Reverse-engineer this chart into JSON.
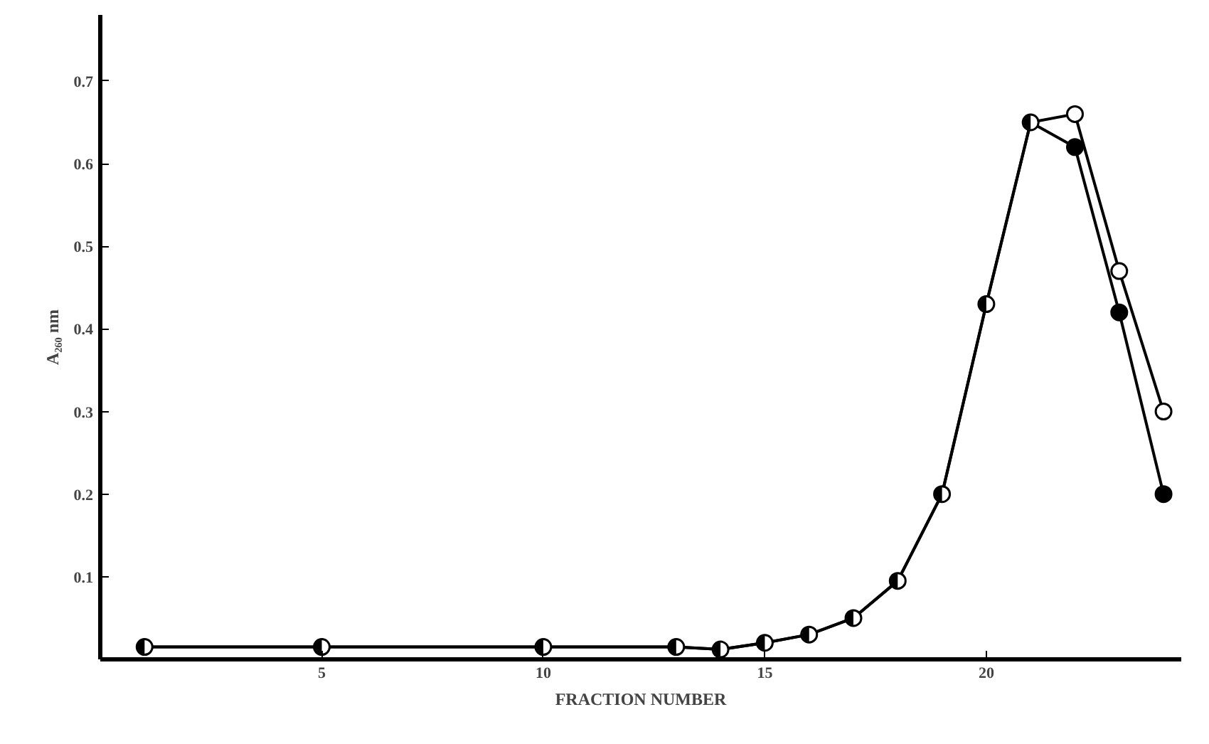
{
  "chart_data": {
    "type": "line",
    "xlabel": "FRACTION NUMBER",
    "ylabel": "A₂₆₀ nm",
    "x": [
      1,
      5,
      10,
      13,
      14,
      15,
      16,
      17,
      18,
      19,
      20,
      21,
      22,
      23,
      24
    ],
    "series": [
      {
        "color": "#000000",
        "values": [
          0.015,
          0.015,
          0.015,
          0.015,
          0.012,
          0.02,
          0.03,
          0.05,
          0.095,
          0.2,
          0.43,
          0.65,
          0.66,
          0.47,
          0.3
        ]
      },
      {
        "color": "#000000",
        "values": [
          0.015,
          0.015,
          0.015,
          0.015,
          0.012,
          0.02,
          0.03,
          0.05,
          0.095,
          0.2,
          0.43,
          0.65,
          0.62,
          0.42,
          0.2
        ]
      }
    ],
    "xlim": [
      0,
      24.4
    ],
    "ylim": [
      0,
      0.78
    ],
    "xticks": [
      5,
      10,
      15,
      20
    ],
    "yticks": [
      0.1,
      0.2,
      0.3,
      0.4,
      0.5,
      0.6,
      0.7
    ],
    "marker": "circle",
    "line_style": "solid"
  }
}
